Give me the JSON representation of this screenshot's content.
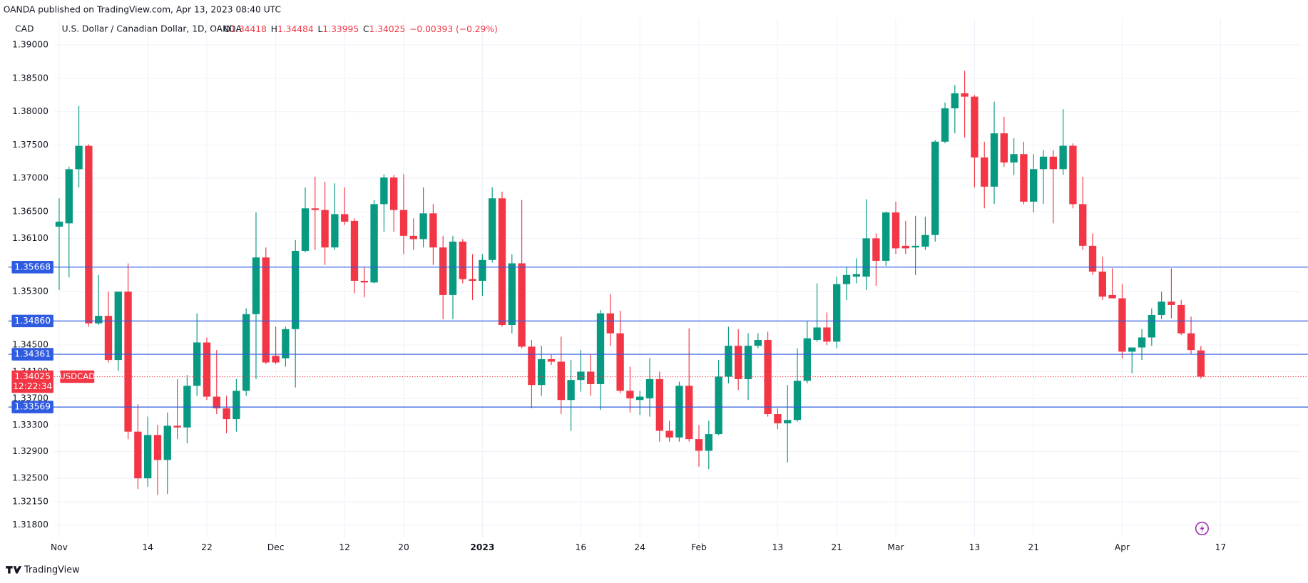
{
  "header": {
    "published": "OANDA published on TradingView.com, Apr 13, 2023 08:40 UTC",
    "footer": "TradingView"
  },
  "chart_data": {
    "type": "candlestick",
    "currency": "CAD",
    "title": "U.S. Dollar / Canadian Dollar, 1D, OANDA",
    "legend_labels": [
      "O",
      "H",
      "L",
      "C"
    ],
    "change": "−0.00393 (−0.29%)",
    "symbol": "USDCAD",
    "countdown": "12:22:34",
    "up_color": "#089981",
    "down_color": "#f23645",
    "line_color": "#2f5be0",
    "grid": true,
    "xlim": [
      -0.5,
      126.2
    ],
    "xticks": [
      {
        "value": 0,
        "label": "Nov"
      },
      {
        "value": 9,
        "label": "14"
      },
      {
        "value": 15,
        "label": "22"
      },
      {
        "value": 22,
        "label": "Dec"
      },
      {
        "value": 29,
        "label": "12"
      },
      {
        "value": 35,
        "label": "20"
      },
      {
        "value": 43,
        "label": "2023"
      },
      {
        "value": 53,
        "label": "16"
      },
      {
        "value": 59,
        "label": "24"
      },
      {
        "value": 65,
        "label": "Feb"
      },
      {
        "value": 73,
        "label": "13"
      },
      {
        "value": 79,
        "label": "21"
      },
      {
        "value": 85,
        "label": "Mar"
      },
      {
        "value": 93,
        "label": "13"
      },
      {
        "value": 99,
        "label": "21"
      },
      {
        "value": 108,
        "label": "Apr"
      },
      {
        "value": 118,
        "label": "17"
      }
    ],
    "ylim": [
      1.3161,
      1.394
    ],
    "yticks": [
      {
        "value": 1.39,
        "label": "1.39000"
      },
      {
        "value": 1.385,
        "label": "1.38500"
      },
      {
        "value": 1.38,
        "label": "1.38000"
      },
      {
        "value": 1.375,
        "label": "1.37500"
      },
      {
        "value": 1.37,
        "label": "1.37000"
      },
      {
        "value": 1.365,
        "label": "1.36500"
      },
      {
        "value": 1.361,
        "label": "1.36100"
      },
      {
        "value": 1.353,
        "label": "1.35300"
      },
      {
        "value": 1.345,
        "label": "1.34500"
      },
      {
        "value": 1.341,
        "label": "1.34100"
      },
      {
        "value": 1.337,
        "label": "1.33700"
      },
      {
        "value": 1.333,
        "label": "1.33300"
      },
      {
        "value": 1.329,
        "label": "1.32900"
      },
      {
        "value": 1.325,
        "label": "1.32500"
      },
      {
        "value": 1.3215,
        "label": "1.32150"
      },
      {
        "value": 1.318,
        "label": "1.31800"
      }
    ],
    "hlines": [
      1.35668,
      {
        "value": 1.3486,
        "label": "1.34860"
      },
      1.34361,
      1.33569
    ],
    "open": [
      1.36275,
      1.36325,
      1.37137,
      1.37487,
      1.34825,
      1.34937,
      1.34275,
      1.353,
      1.332,
      1.325,
      1.3315,
      1.32775,
      1.33288,
      1.33263,
      1.33888,
      1.34538,
      1.33725,
      1.3355,
      1.33388,
      1.33813,
      1.34963,
      1.35813,
      1.34338,
      1.343,
      1.34738,
      1.35912,
      1.3655,
      1.36525,
      1.35963,
      1.36463,
      1.36362,
      1.35463,
      1.35438,
      1.36613,
      1.37013,
      1.36525,
      1.36138,
      1.36088,
      1.36475,
      1.35963,
      1.3525,
      1.3605,
      1.35488,
      1.35463,
      1.35775,
      1.367,
      1.348,
      1.35725,
      1.34475,
      1.339,
      1.34288,
      1.3425,
      1.33675,
      1.33975,
      1.341,
      1.33913,
      1.34975,
      1.34675,
      1.33813,
      1.33675,
      1.337,
      1.33988,
      1.33213,
      1.33113,
      1.33888,
      1.33088,
      1.32913,
      1.33163,
      1.34025,
      1.34488,
      1.33988,
      1.34488,
      1.34575,
      1.33463,
      1.33325,
      1.33375,
      1.33963,
      1.34575,
      1.34763,
      1.3455,
      1.35413,
      1.35525,
      1.35525,
      1.361,
      1.35763,
      1.36488,
      1.35988,
      1.35963,
      1.35975,
      1.3615,
      1.3755,
      1.3805,
      1.38275,
      1.38225,
      1.37313,
      1.36875,
      1.37675,
      1.37238,
      1.37363,
      1.3665,
      1.37138,
      1.37325,
      1.37138,
      1.37488,
      1.36613,
      1.35988,
      1.356,
      1.3525,
      1.352,
      1.344,
      1.34463,
      1.34613,
      1.3495,
      1.3515,
      1.351,
      1.34675,
      1.34418
    ],
    "high": [
      1.367,
      1.37175,
      1.38087,
      1.37512,
      1.3555,
      1.353,
      1.353,
      1.35725,
      1.33612,
      1.33425,
      1.333,
      1.33488,
      1.33988,
      1.3405,
      1.34975,
      1.34612,
      1.34425,
      1.33738,
      1.33988,
      1.3505,
      1.36488,
      1.35963,
      1.34775,
      1.34775,
      1.36075,
      1.36862,
      1.37025,
      1.3695,
      1.36925,
      1.36863,
      1.364,
      1.35675,
      1.36675,
      1.37063,
      1.3705,
      1.37063,
      1.364,
      1.36863,
      1.36613,
      1.36138,
      1.36138,
      1.36088,
      1.35863,
      1.35863,
      1.36863,
      1.368,
      1.35863,
      1.36675,
      1.34575,
      1.34488,
      1.34363,
      1.34625,
      1.34275,
      1.34425,
      1.34363,
      1.35025,
      1.35263,
      1.35013,
      1.34175,
      1.33813,
      1.343,
      1.341,
      1.33363,
      1.3395,
      1.3475,
      1.333,
      1.33363,
      1.34275,
      1.34775,
      1.34738,
      1.34675,
      1.34675,
      1.347,
      1.3355,
      1.339,
      1.3445,
      1.34863,
      1.35425,
      1.34988,
      1.35525,
      1.35675,
      1.358,
      1.36688,
      1.36175,
      1.365,
      1.3665,
      1.36363,
      1.36438,
      1.36425,
      1.37575,
      1.38138,
      1.384,
      1.38613,
      1.3825,
      1.3755,
      1.3815,
      1.37925,
      1.376,
      1.3755,
      1.37363,
      1.37425,
      1.37425,
      1.38038,
      1.37525,
      1.37025,
      1.36175,
      1.35825,
      1.3565,
      1.35413,
      1.34463,
      1.34738,
      1.3505,
      1.353,
      1.3565,
      1.35175,
      1.34925,
      1.34484
    ],
    "low": [
      1.35325,
      1.35513,
      1.36862,
      1.34775,
      1.348,
      1.34237,
      1.34112,
      1.33087,
      1.32337,
      1.32375,
      1.3225,
      1.32263,
      1.33087,
      1.33025,
      1.33738,
      1.33675,
      1.33462,
      1.33175,
      1.332,
      1.33738,
      1.33988,
      1.34213,
      1.34213,
      1.34175,
      1.33862,
      1.35888,
      1.35925,
      1.357,
      1.35925,
      1.363,
      1.35275,
      1.35213,
      1.35425,
      1.362,
      1.362,
      1.35863,
      1.35925,
      1.35963,
      1.357,
      1.34888,
      1.34888,
      1.35425,
      1.35175,
      1.35238,
      1.35738,
      1.34775,
      1.34675,
      1.3445,
      1.3355,
      1.33738,
      1.342,
      1.33462,
      1.33212,
      1.338,
      1.33738,
      1.33525,
      1.34488,
      1.33775,
      1.33488,
      1.3345,
      1.33425,
      1.3305,
      1.3305,
      1.3305,
      1.3305,
      1.32675,
      1.32638,
      1.3315,
      1.33925,
      1.33825,
      1.33675,
      1.3445,
      1.33425,
      1.33238,
      1.32738,
      1.3335,
      1.33925,
      1.3455,
      1.345,
      1.3445,
      1.35175,
      1.35425,
      1.35325,
      1.35388,
      1.35688,
      1.35863,
      1.35863,
      1.3555,
      1.35925,
      1.3605,
      1.37525,
      1.37675,
      1.37613,
      1.36863,
      1.3655,
      1.36613,
      1.37175,
      1.3705,
      1.36613,
      1.36488,
      1.36613,
      1.36325,
      1.3705,
      1.3655,
      1.35925,
      1.3555,
      1.35175,
      1.352,
      1.343,
      1.34075,
      1.34275,
      1.34488,
      1.34888,
      1.349,
      1.3465,
      1.34363,
      1.33995
    ],
    "close": [
      1.3635,
      1.37137,
      1.37487,
      1.34825,
      1.34937,
      1.34275,
      1.353,
      1.332,
      1.325,
      1.3315,
      1.32775,
      1.33288,
      1.33263,
      1.33888,
      1.34538,
      1.33725,
      1.3355,
      1.33388,
      1.33813,
      1.34963,
      1.35813,
      1.34238,
      1.34238,
      1.34738,
      1.35912,
      1.3655,
      1.36525,
      1.35963,
      1.36463,
      1.3635,
      1.35463,
      1.35438,
      1.36613,
      1.37013,
      1.36525,
      1.36138,
      1.36088,
      1.36475,
      1.35963,
      1.3525,
      1.3605,
      1.35488,
      1.35463,
      1.35775,
      1.367,
      1.348,
      1.35725,
      1.34475,
      1.339,
      1.34288,
      1.3425,
      1.33675,
      1.33975,
      1.341,
      1.33913,
      1.34975,
      1.34675,
      1.33813,
      1.337,
      1.33725,
      1.33988,
      1.33213,
      1.33113,
      1.33888,
      1.33088,
      1.32913,
      1.33163,
      1.34025,
      1.34488,
      1.33988,
      1.34488,
      1.34575,
      1.33463,
      1.33325,
      1.33375,
      1.33963,
      1.346,
      1.34763,
      1.3455,
      1.35413,
      1.3555,
      1.35563,
      1.361,
      1.35763,
      1.36488,
      1.3595,
      1.3595,
      1.35988,
      1.3615,
      1.3755,
      1.3805,
      1.38275,
      1.38225,
      1.37313,
      1.36875,
      1.37675,
      1.37238,
      1.37363,
      1.3665,
      1.37138,
      1.37325,
      1.37138,
      1.37488,
      1.36613,
      1.35988,
      1.356,
      1.35225,
      1.352,
      1.344,
      1.34463,
      1.34613,
      1.3495,
      1.3515,
      1.351,
      1.34675,
      1.34425,
      1.34025
    ]
  }
}
